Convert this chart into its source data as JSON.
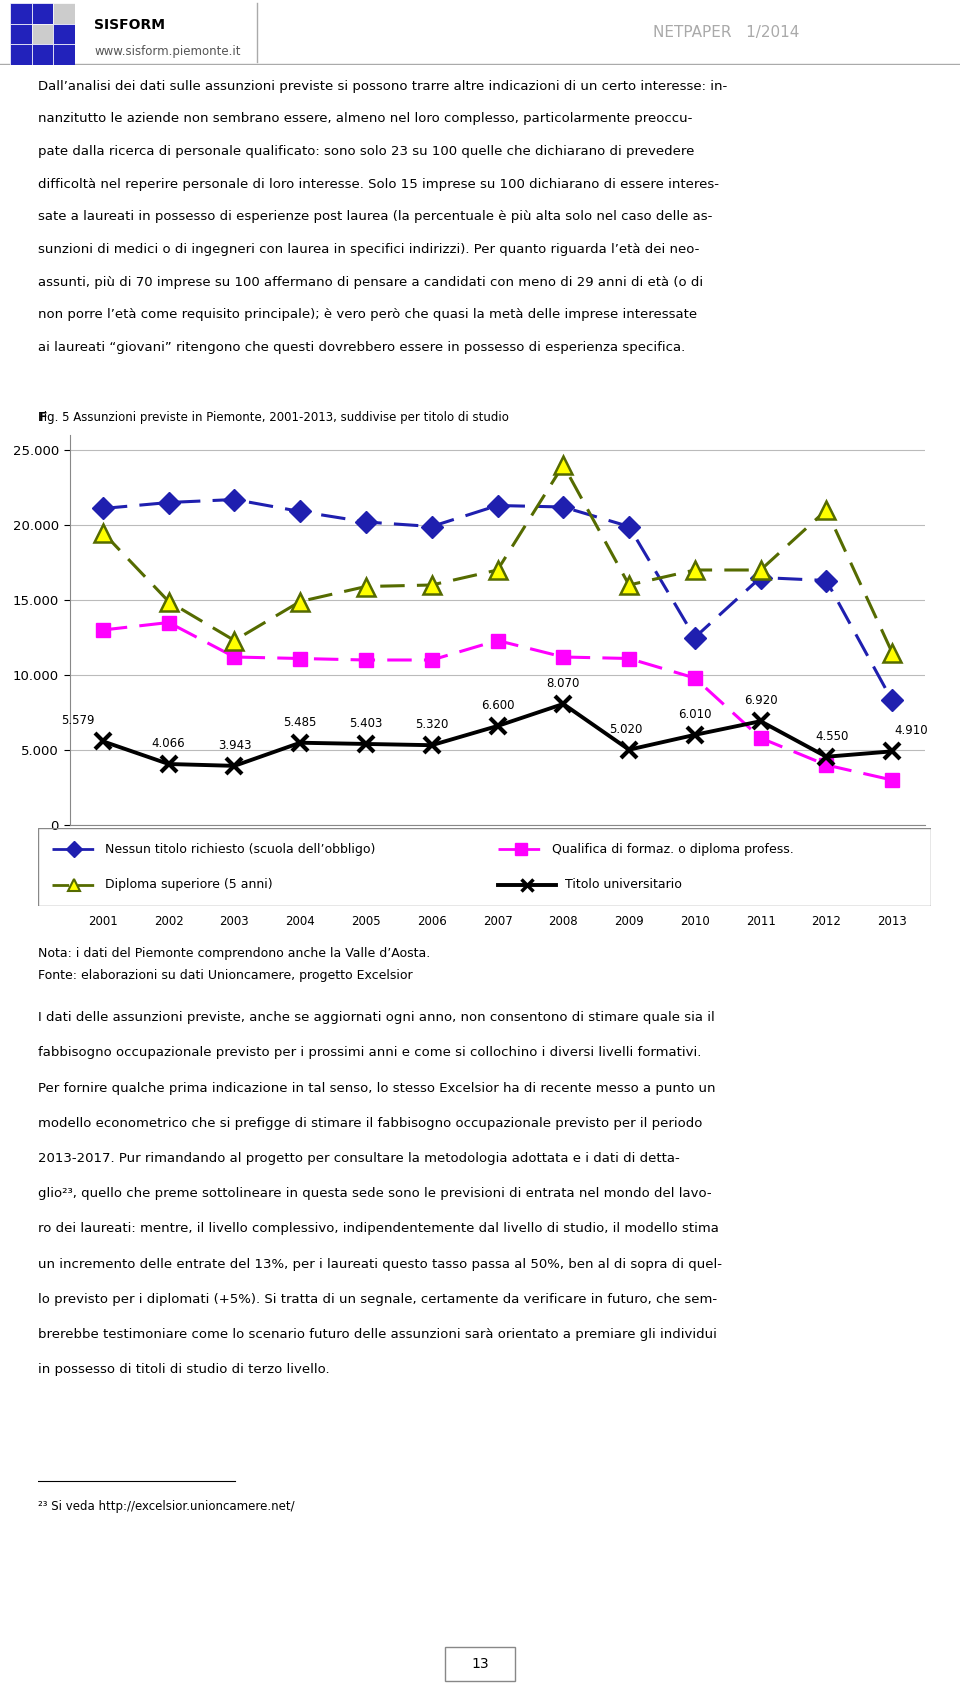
{
  "years": [
    2001,
    2002,
    2003,
    2004,
    2005,
    2006,
    2007,
    2008,
    2009,
    2010,
    2011,
    2012,
    2013
  ],
  "nessun_titolo": [
    21100,
    21500,
    21700,
    20900,
    20200,
    19900,
    21300,
    21200,
    19900,
    12500,
    16500,
    16300,
    8300
  ],
  "qualifica": [
    13000,
    13500,
    11200,
    11100,
    11000,
    11000,
    12300,
    11200,
    11100,
    9800,
    5800,
    4000,
    3000
  ],
  "diploma": [
    19500,
    14900,
    12300,
    14900,
    15900,
    16000,
    17000,
    24000,
    16000,
    17000,
    17000,
    21000,
    11500
  ],
  "universitario": [
    5579,
    4066,
    3943,
    5485,
    5403,
    5320,
    6600,
    8070,
    5020,
    6010,
    6920,
    4550,
    4910
  ],
  "univ_labels": [
    "5.579",
    "4.066",
    "3.943",
    "5.485",
    "5.403",
    "5.320",
    "6.600",
    "8.070",
    "5.020",
    "6.010",
    "6.920",
    "4.550",
    "4.910"
  ],
  "title_fig_small": "F",
  "title_fig_rest": "IG. 5 A",
  "title_fig": "FIG. 5 ASSUNZIONI PREVISTE IN PIEMONTE, 2001-2013, SUDDIVISE PER TITOLO DI STUDIO",
  "legend_1": "Nessun titolo richiesto (scuola dell’obbligo)",
  "legend_2": "Qualifica di formaz. o diploma profess.",
  "legend_3": "Diploma superiore (5 anni)",
  "legend_4": "Titolo universitario",
  "note_line1": "Nota: i dati del Piemonte comprendono anche la Valle d’Aosta.",
  "note_line2": "Fonte: elaborazioni su dati Unioncamere, progetto Excelsior",
  "ylim_min": 0,
  "ylim_max": 26000,
  "bg_color": "#ffffff",
  "header_sisform": "SISFORM",
  "header_url": "www.sisform.piemonte.it",
  "header_netpaper": "NETPAPER   1/2014",
  "color_nessun": "#1F1FAF",
  "color_qualifica": "#FF00FF",
  "color_diploma": "#556B00",
  "color_univ": "#000000",
  "para1_lines": [
    "Dall’analisi dei dati sulle assunzioni previste si possono trarre altre indicazioni di un certo interesse: in-",
    "nanzitutto le aziende non sembrano essere, almeno nel loro complesso, particolarmente preoccu-",
    "pate dalla ricerca di personale qualificato: sono solo 23 su 100 quelle che dichiarano di prevedere",
    "difficoltà nel reperire personale di loro interesse. Solo 15 imprese su 100 dichiarano di essere interes-",
    "sate a laureati in possesso di esperienze post laurea (la percentuale è più alta solo nel caso delle as-",
    "sunzioni di medici o di ingegneri con laurea in specifici indirizzi). Per quanto riguarda l’età dei neo-",
    "assunti, più di 70 imprese su 100 affermano di pensare a candidati con meno di 29 anni di età (o di",
    "non porre l’età come requisito principale); è vero però che quasi la metà delle imprese interessate",
    "ai laureati “giovani” ritengono che questi dovrebbero essere in possesso di esperienza specifica."
  ],
  "para2_lines": [
    "I dati delle assunzioni previste, anche se aggiornati ogni anno, non consentono di stimare quale sia il",
    "fabbisogno occupazionale previsto per i prossimi anni e come si collochino i diversi livelli formativi.",
    "Per fornire qualche prima indicazione in tal senso, lo stesso Excelsior ha di recente messo a punto un",
    "modello econometrico che si prefigge di stimare il fabbisogno occupazionale previsto per il periodo",
    "2013-2017. Pur rimandando al progetto per consultare la metodologia adottata e i dati di detta-",
    "glio²³, quello che preme sottolineare in questa sede sono le previsioni di entrata nel mondo del lavo-",
    "ro dei laureati: mentre, il livello complessivo, indipendentemente dal livello di studio, il modello stima",
    "un incremento delle entrate del 13%, per i laureati questo tasso passa al 50%, ben al di sopra di quel-",
    "lo previsto per i diplomati (+5%). Si tratta di un segnale, certamente da verificare in futuro, che sem-",
    "brerebbe testimoniare come lo scenario futuro delle assunzioni sarà orientato a premiare gli individui",
    "in possesso di titoli di studio di terzo livello."
  ],
  "footnote_label": "²³",
  "footnote_text": " Si veda http://excelsior.unioncamere.net/",
  "page_num": "13"
}
